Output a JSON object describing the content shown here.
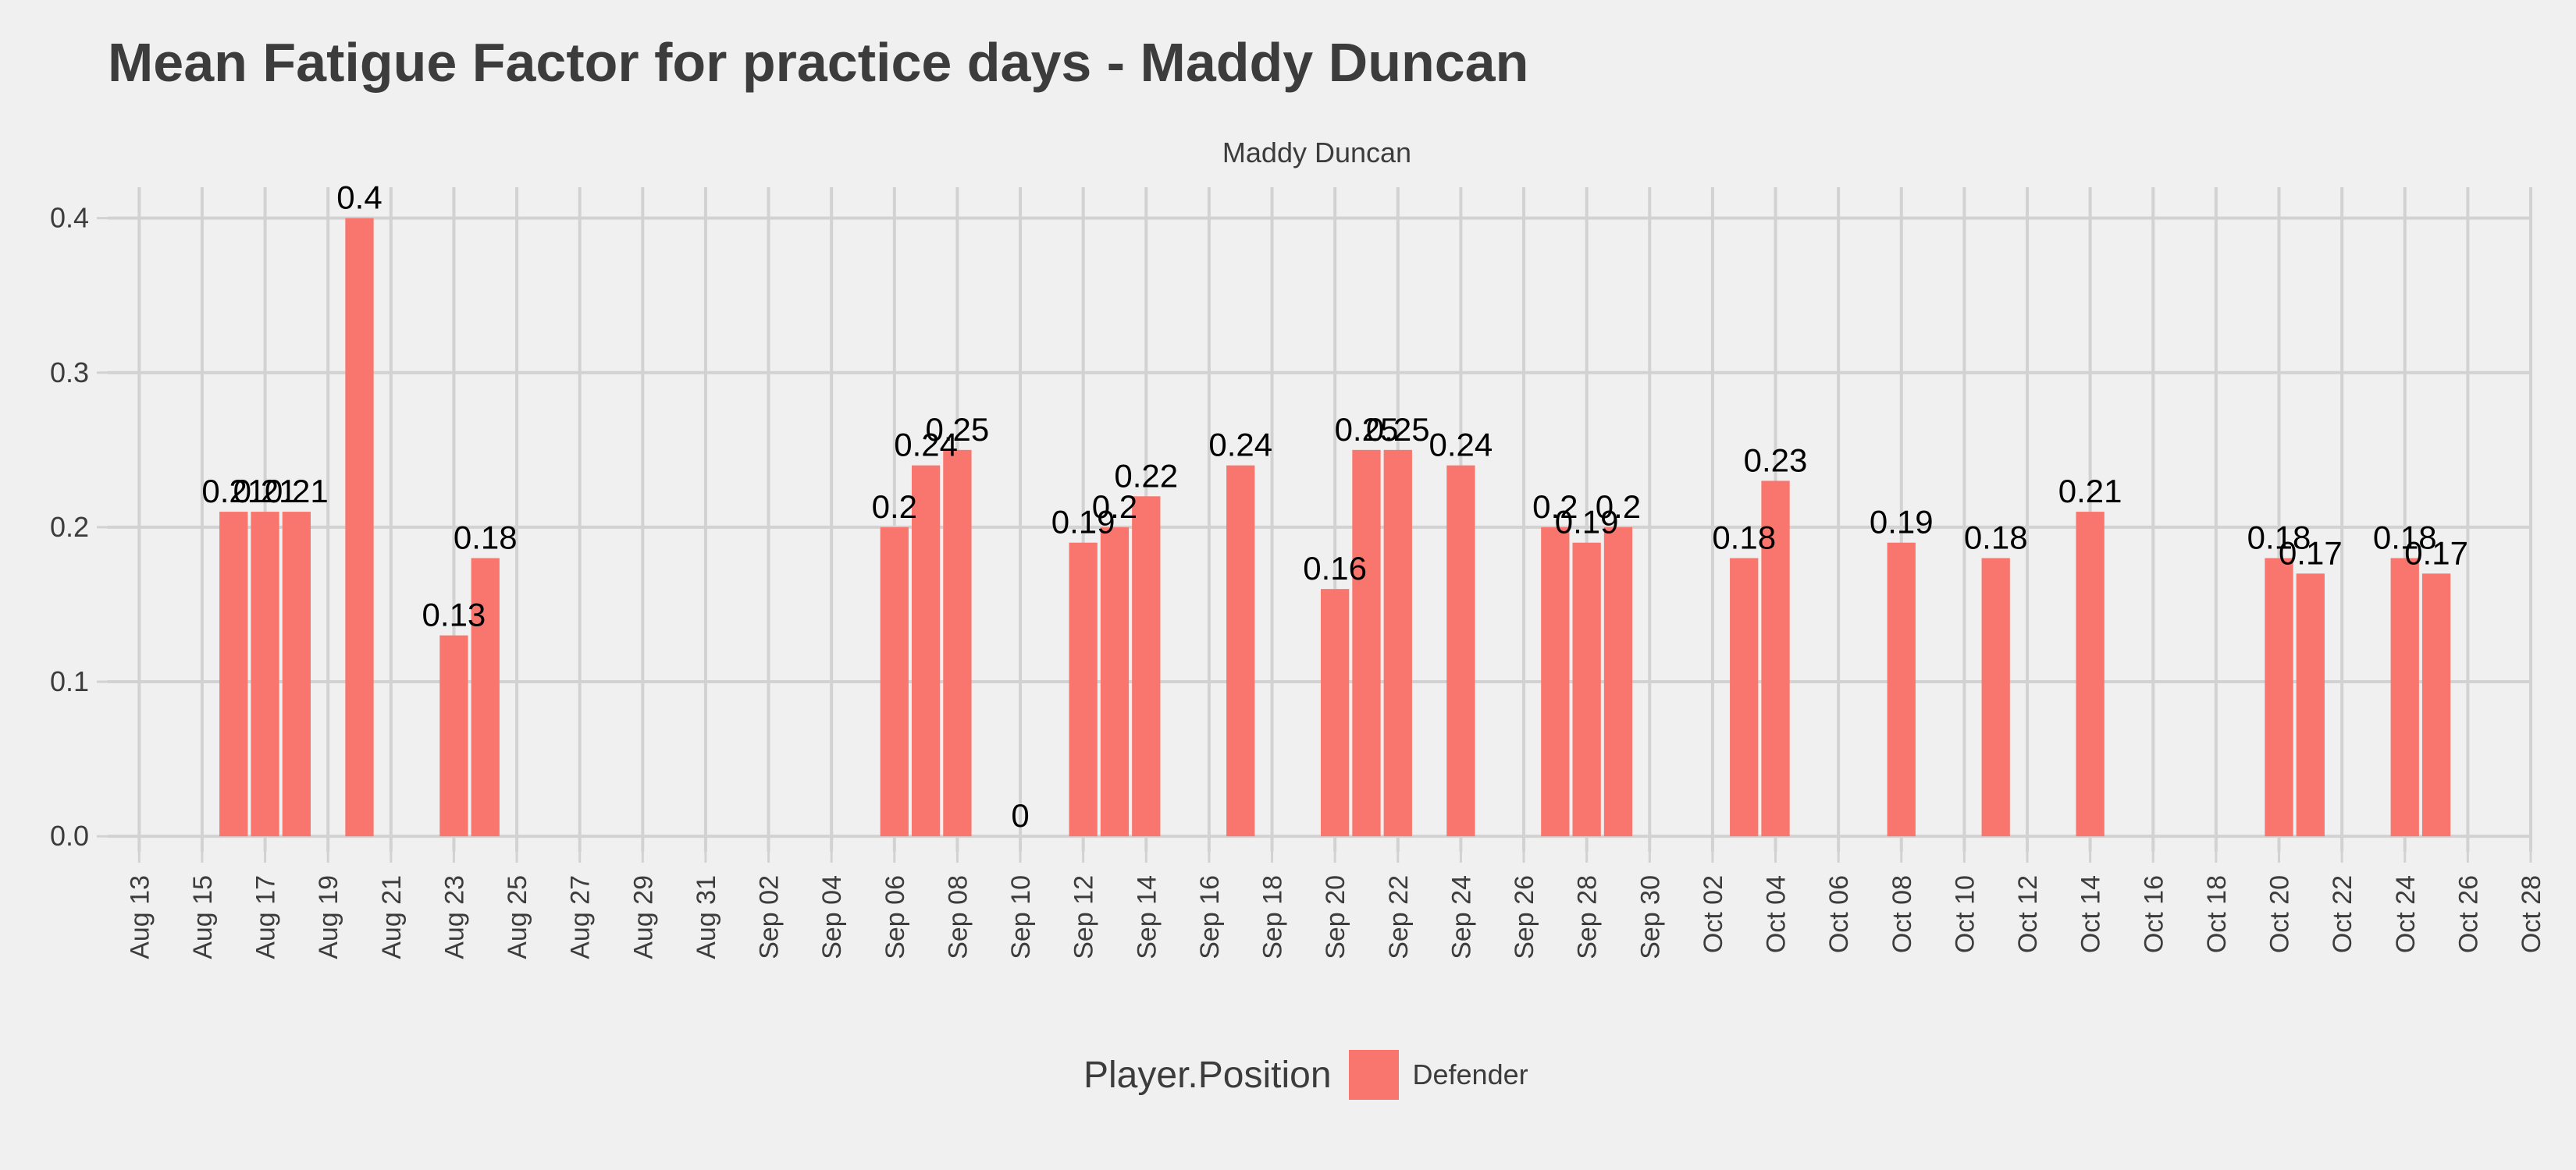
{
  "chart_data": {
    "type": "bar",
    "title": "Mean Fatigue Factor for practice days -  Maddy Duncan",
    "facet_label": "Maddy Duncan",
    "xlabel": "",
    "ylabel": "",
    "x_range": [
      "2019-08-12",
      "2019-10-28"
    ],
    "ylim": [
      -0.01,
      0.42
    ],
    "yticks": [
      0.0,
      0.1,
      0.2,
      0.3,
      0.4
    ],
    "ytick_labels": [
      "0.0",
      "0.1",
      "0.2",
      "0.3",
      "0.4"
    ],
    "xtick_labels": [
      "Aug 13",
      "Aug 15",
      "Aug 17",
      "Aug 19",
      "Aug 21",
      "Aug 23",
      "Aug 25",
      "Aug 27",
      "Aug 29",
      "Aug 31",
      "Sep 02",
      "Sep 04",
      "Sep 06",
      "Sep 08",
      "Sep 10",
      "Sep 12",
      "Sep 14",
      "Sep 16",
      "Sep 18",
      "Sep 20",
      "Sep 22",
      "Sep 24",
      "Sep 26",
      "Sep 28",
      "Sep 30",
      "Oct 02",
      "Oct 04",
      "Oct 06",
      "Oct 08",
      "Oct 10",
      "Oct 12",
      "Oct 14",
      "Oct 16",
      "Oct 18",
      "Oct 20",
      "Oct 22",
      "Oct 24",
      "Oct 26",
      "Oct 28"
    ],
    "grid": true,
    "legend": {
      "title": "Player.Position",
      "position": "bottom",
      "entries": [
        {
          "name": "Defender",
          "color": "#f8766d"
        }
      ]
    },
    "series": [
      {
        "name": "Defender",
        "color": "#f8766d",
        "points": [
          {
            "date": "Aug 16",
            "value": 0.21,
            "label": "0.21"
          },
          {
            "date": "Aug 17",
            "value": 0.21,
            "label": "0.21"
          },
          {
            "date": "Aug 18",
            "value": 0.21,
            "label": "0.21"
          },
          {
            "date": "Aug 20",
            "value": 0.4,
            "label": "0.4"
          },
          {
            "date": "Aug 23",
            "value": 0.13,
            "label": "0.13"
          },
          {
            "date": "Aug 24",
            "value": 0.18,
            "label": "0.18"
          },
          {
            "date": "Sep 06",
            "value": 0.2,
            "label": "0.2"
          },
          {
            "date": "Sep 07",
            "value": 0.24,
            "label": "0.24"
          },
          {
            "date": "Sep 08",
            "value": 0.25,
            "label": "0.25"
          },
          {
            "date": "Sep 10",
            "value": 0.0,
            "label": "0"
          },
          {
            "date": "Sep 12",
            "value": 0.19,
            "label": "0.19"
          },
          {
            "date": "Sep 13",
            "value": 0.2,
            "label": "0.2"
          },
          {
            "date": "Sep 14",
            "value": 0.22,
            "label": "0.22"
          },
          {
            "date": "Sep 17",
            "value": 0.24,
            "label": "0.24"
          },
          {
            "date": "Sep 20",
            "value": 0.16,
            "label": "0.16"
          },
          {
            "date": "Sep 21",
            "value": 0.25,
            "label": "0.25"
          },
          {
            "date": "Sep 22",
            "value": 0.25,
            "label": "0.25"
          },
          {
            "date": "Sep 24",
            "value": 0.24,
            "label": "0.24"
          },
          {
            "date": "Sep 27",
            "value": 0.2,
            "label": "0.2"
          },
          {
            "date": "Sep 28",
            "value": 0.19,
            "label": "0.19"
          },
          {
            "date": "Sep 29",
            "value": 0.2,
            "label": "0.2"
          },
          {
            "date": "Oct 03",
            "value": 0.18,
            "label": "0.18"
          },
          {
            "date": "Oct 04",
            "value": 0.23,
            "label": "0.23"
          },
          {
            "date": "Oct 08",
            "value": 0.19,
            "label": "0.19"
          },
          {
            "date": "Oct 11",
            "value": 0.18,
            "label": "0.18"
          },
          {
            "date": "Oct 14",
            "value": 0.21,
            "label": "0.21"
          },
          {
            "date": "Oct 20",
            "value": 0.18,
            "label": "0.18"
          },
          {
            "date": "Oct 21",
            "value": 0.17,
            "label": "0.17"
          },
          {
            "date": "Oct 24",
            "value": 0.18,
            "label": "0.18"
          },
          {
            "date": "Oct 25",
            "value": 0.17,
            "label": "0.17"
          }
        ]
      }
    ]
  }
}
